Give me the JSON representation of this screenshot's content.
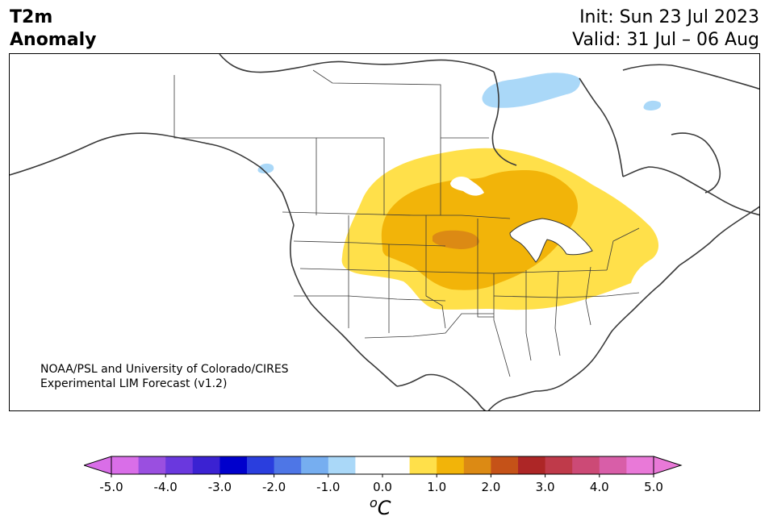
{
  "header": {
    "variable_line1": "T2m",
    "variable_line2": "Anomaly",
    "init_text": "Init: Sun 23 Jul 2023",
    "valid_text": "Valid: 31 Jul – 06 Aug"
  },
  "credit": {
    "line1": "NOAA/PSL and University of Colorado/CIRES",
    "line2": "Experimental LIM Forecast (v1.2)"
  },
  "colorbar": {
    "unit_sup": "o",
    "unit": "C",
    "ticks": [
      "-5.0",
      "-4.0",
      "-3.0",
      "-2.0",
      "-1.0",
      "0.0",
      "1.0",
      "2.0",
      "3.0",
      "4.0",
      "5.0"
    ],
    "colors": [
      "#d96ee8",
      "#9a4fe0",
      "#6a38de",
      "#3b22d2",
      "#0000cc",
      "#2a3ede",
      "#4e76e6",
      "#76aef0",
      "#aad8f8",
      "#ffffff",
      "#ffffff",
      "#ffe04a",
      "#f2b409",
      "#dc8a14",
      "#c55218",
      "#ad2626",
      "#bf3a4a",
      "#cc4a76",
      "#d85ea8",
      "#e979d8"
    ],
    "low_extend_color": "#d96ee8",
    "high_extend_color": "#e979d8"
  },
  "anomaly_colors": {
    "light_warm": "#ffe04a",
    "warm": "#f2b409",
    "hot": "#dc8a14",
    "cool": "#aad8f8"
  }
}
